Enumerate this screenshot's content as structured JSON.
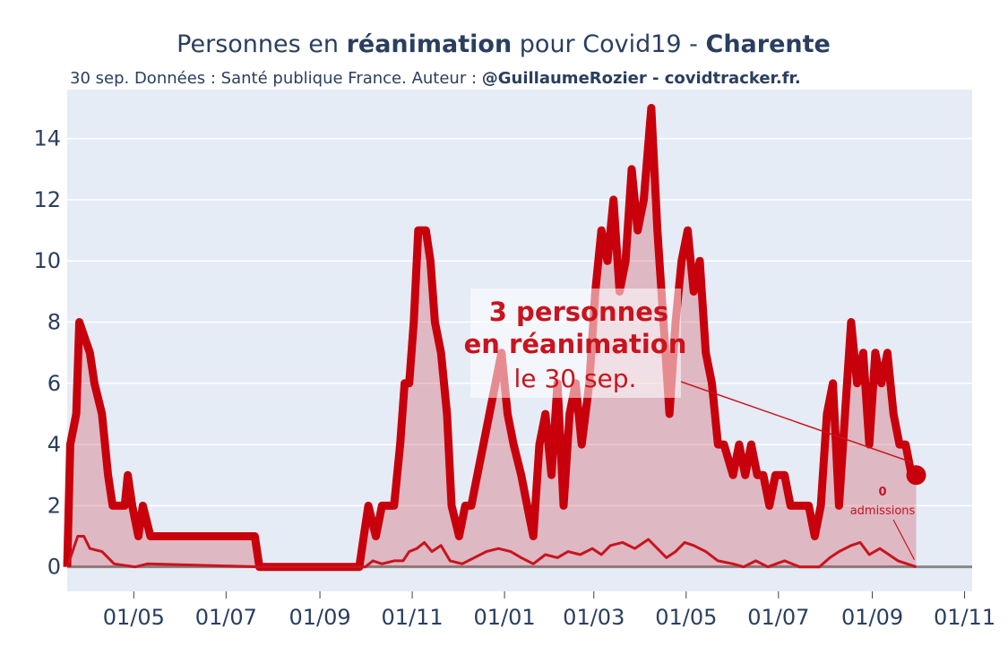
{
  "title": {
    "prefix": "Personnes en ",
    "bold1": "réanimation",
    "middle": " pour Covid19 - ",
    "bold2": "Charente"
  },
  "subtitle": {
    "plain": "30 sep. Données : Santé publique France. Auteur : ",
    "bold": "@GuillaumeRozier - covidtracker.fr."
  },
  "annotation": {
    "line1": "3 personnes",
    "line2": "en réanimation",
    "line3": "le 30 sep."
  },
  "admissions_label": {
    "value": "0",
    "text": "admissions"
  },
  "colors": {
    "plot_bg": "#e5ecf6",
    "main_line": "#c8000c",
    "fill": "rgba(200,0,12,0.22)",
    "text": "#2a3f5f",
    "baseline": "#888888"
  },
  "chart_data": {
    "type": "line",
    "x_start": "2020-03-18",
    "x_end": "2021-09-30",
    "ylim": [
      -0.8,
      15.6
    ],
    "xlim": [
      "2020-03-18",
      "2021-11-06"
    ],
    "xticks": [
      {
        "date": "2020-05-01",
        "label": "01/05"
      },
      {
        "date": "2020-07-01",
        "label": "01/07"
      },
      {
        "date": "2020-09-01",
        "label": "01/09"
      },
      {
        "date": "2020-11-01",
        "label": "01/11"
      },
      {
        "date": "2021-01-01",
        "label": "01/01"
      },
      {
        "date": "2021-03-01",
        "label": "01/03"
      },
      {
        "date": "2021-05-01",
        "label": "01/05"
      },
      {
        "date": "2021-07-01",
        "label": "01/07"
      },
      {
        "date": "2021-09-01",
        "label": "01/09"
      },
      {
        "date": "2021-11-01",
        "label": "01/11"
      }
    ],
    "yticks": [
      0,
      2,
      4,
      6,
      8,
      10,
      12,
      14
    ],
    "series": [
      {
        "name": "réanimation",
        "points": [
          [
            "2020-03-18",
            0
          ],
          [
            "2020-03-20",
            4
          ],
          [
            "2020-03-24",
            5
          ],
          [
            "2020-03-26",
            8
          ],
          [
            "2020-04-02",
            7
          ],
          [
            "2020-04-05",
            6
          ],
          [
            "2020-04-10",
            5
          ],
          [
            "2020-04-14",
            3
          ],
          [
            "2020-04-17",
            2
          ],
          [
            "2020-04-25",
            2
          ],
          [
            "2020-04-27",
            3
          ],
          [
            "2020-04-30",
            2
          ],
          [
            "2020-05-04",
            1
          ],
          [
            "2020-05-07",
            2
          ],
          [
            "2020-05-12",
            1
          ],
          [
            "2020-07-20",
            1
          ],
          [
            "2020-07-23",
            0
          ],
          [
            "2020-09-27",
            0
          ],
          [
            "2020-09-30",
            1
          ],
          [
            "2020-10-03",
            2
          ],
          [
            "2020-10-08",
            1
          ],
          [
            "2020-10-12",
            2
          ],
          [
            "2020-10-20",
            2
          ],
          [
            "2020-10-24",
            4
          ],
          [
            "2020-10-27",
            6
          ],
          [
            "2020-10-30",
            6
          ],
          [
            "2020-11-02",
            8
          ],
          [
            "2020-11-05",
            11
          ],
          [
            "2020-11-10",
            11
          ],
          [
            "2020-11-13",
            10
          ],
          [
            "2020-11-16",
            8
          ],
          [
            "2020-11-20",
            7
          ],
          [
            "2020-11-24",
            5
          ],
          [
            "2020-11-27",
            2
          ],
          [
            "2020-12-02",
            1
          ],
          [
            "2020-12-06",
            2
          ],
          [
            "2020-12-10",
            2
          ],
          [
            "2020-12-14",
            3
          ],
          [
            "2020-12-18",
            4
          ],
          [
            "2020-12-22",
            5
          ],
          [
            "2020-12-26",
            6
          ],
          [
            "2020-12-30",
            7
          ],
          [
            "2021-01-03",
            5
          ],
          [
            "2021-01-07",
            4
          ],
          [
            "2021-01-12",
            3
          ],
          [
            "2021-01-16",
            2
          ],
          [
            "2021-01-20",
            1
          ],
          [
            "2021-01-24",
            4
          ],
          [
            "2021-01-28",
            5
          ],
          [
            "2021-02-01",
            3
          ],
          [
            "2021-02-05",
            6
          ],
          [
            "2021-02-09",
            2
          ],
          [
            "2021-02-13",
            5
          ],
          [
            "2021-02-17",
            6
          ],
          [
            "2021-02-21",
            4
          ],
          [
            "2021-02-26",
            6
          ],
          [
            "2021-03-02",
            9
          ],
          [
            "2021-03-06",
            11
          ],
          [
            "2021-03-10",
            10
          ],
          [
            "2021-03-14",
            12
          ],
          [
            "2021-03-18",
            9
          ],
          [
            "2021-03-22",
            10
          ],
          [
            "2021-03-26",
            13
          ],
          [
            "2021-03-30",
            11
          ],
          [
            "2021-04-03",
            12
          ],
          [
            "2021-04-08",
            15
          ],
          [
            "2021-04-12",
            11
          ],
          [
            "2021-04-16",
            8
          ],
          [
            "2021-04-20",
            5
          ],
          [
            "2021-04-24",
            8
          ],
          [
            "2021-04-28",
            10
          ],
          [
            "2021-05-02",
            11
          ],
          [
            "2021-05-06",
            9
          ],
          [
            "2021-05-10",
            10
          ],
          [
            "2021-05-14",
            7
          ],
          [
            "2021-05-18",
            6
          ],
          [
            "2021-05-22",
            4
          ],
          [
            "2021-05-26",
            4
          ],
          [
            "2021-06-01",
            3
          ],
          [
            "2021-06-05",
            4
          ],
          [
            "2021-06-09",
            3
          ],
          [
            "2021-06-13",
            4
          ],
          [
            "2021-06-17",
            3
          ],
          [
            "2021-06-21",
            3
          ],
          [
            "2021-06-25",
            2
          ],
          [
            "2021-06-29",
            3
          ],
          [
            "2021-07-05",
            3
          ],
          [
            "2021-07-09",
            2
          ],
          [
            "2021-07-15",
            2
          ],
          [
            "2021-07-21",
            2
          ],
          [
            "2021-07-25",
            1
          ],
          [
            "2021-07-29",
            2
          ],
          [
            "2021-08-02",
            5
          ],
          [
            "2021-08-06",
            6
          ],
          [
            "2021-08-10",
            2
          ],
          [
            "2021-08-14",
            5
          ],
          [
            "2021-08-18",
            8
          ],
          [
            "2021-08-22",
            6
          ],
          [
            "2021-08-26",
            7
          ],
          [
            "2021-08-30",
            4
          ],
          [
            "2021-09-03",
            7
          ],
          [
            "2021-09-07",
            6
          ],
          [
            "2021-09-11",
            7
          ],
          [
            "2021-09-15",
            5
          ],
          [
            "2021-09-19",
            4
          ],
          [
            "2021-09-23",
            4
          ],
          [
            "2021-09-27",
            3
          ],
          [
            "2021-09-30",
            3
          ]
        ]
      },
      {
        "name": "admissions",
        "points": [
          [
            "2020-03-18",
            0
          ],
          [
            "2020-03-25",
            1
          ],
          [
            "2020-03-29",
            1
          ],
          [
            "2020-04-02",
            0.6
          ],
          [
            "2020-04-10",
            0.5
          ],
          [
            "2020-04-18",
            0.1
          ],
          [
            "2020-05-02",
            0
          ],
          [
            "2020-05-10",
            0.1
          ],
          [
            "2020-07-25",
            0
          ],
          [
            "2020-10-01",
            0
          ],
          [
            "2020-10-06",
            0.2
          ],
          [
            "2020-10-12",
            0.1
          ],
          [
            "2020-10-20",
            0.2
          ],
          [
            "2020-10-26",
            0.2
          ],
          [
            "2020-10-30",
            0.5
          ],
          [
            "2020-11-04",
            0.6
          ],
          [
            "2020-11-09",
            0.8
          ],
          [
            "2020-11-14",
            0.5
          ],
          [
            "2020-11-20",
            0.7
          ],
          [
            "2020-11-26",
            0.2
          ],
          [
            "2020-12-04",
            0.1
          ],
          [
            "2020-12-12",
            0.3
          ],
          [
            "2020-12-20",
            0.5
          ],
          [
            "2020-12-28",
            0.6
          ],
          [
            "2021-01-05",
            0.5
          ],
          [
            "2021-01-12",
            0.3
          ],
          [
            "2021-01-20",
            0.1
          ],
          [
            "2021-01-28",
            0.4
          ],
          [
            "2021-02-05",
            0.3
          ],
          [
            "2021-02-12",
            0.5
          ],
          [
            "2021-02-20",
            0.4
          ],
          [
            "2021-02-28",
            0.6
          ],
          [
            "2021-03-06",
            0.4
          ],
          [
            "2021-03-12",
            0.7
          ],
          [
            "2021-03-20",
            0.8
          ],
          [
            "2021-03-28",
            0.6
          ],
          [
            "2021-04-06",
            0.9
          ],
          [
            "2021-04-12",
            0.6
          ],
          [
            "2021-04-18",
            0.3
          ],
          [
            "2021-04-24",
            0.5
          ],
          [
            "2021-04-30",
            0.8
          ],
          [
            "2021-05-06",
            0.7
          ],
          [
            "2021-05-14",
            0.5
          ],
          [
            "2021-05-22",
            0.2
          ],
          [
            "2021-06-01",
            0.1
          ],
          [
            "2021-06-08",
            0
          ],
          [
            "2021-06-16",
            0.2
          ],
          [
            "2021-06-24",
            0
          ],
          [
            "2021-07-05",
            0.2
          ],
          [
            "2021-07-15",
            0
          ],
          [
            "2021-07-28",
            0
          ],
          [
            "2021-08-04",
            0.3
          ],
          [
            "2021-08-10",
            0.5
          ],
          [
            "2021-08-18",
            0.7
          ],
          [
            "2021-08-24",
            0.8
          ],
          [
            "2021-08-30",
            0.4
          ],
          [
            "2021-09-06",
            0.6
          ],
          [
            "2021-09-12",
            0.4
          ],
          [
            "2021-09-18",
            0.2
          ],
          [
            "2021-09-24",
            0.1
          ],
          [
            "2021-09-30",
            0
          ]
        ]
      }
    ],
    "last_value": {
      "date": "2021-09-30",
      "value": 3
    }
  }
}
